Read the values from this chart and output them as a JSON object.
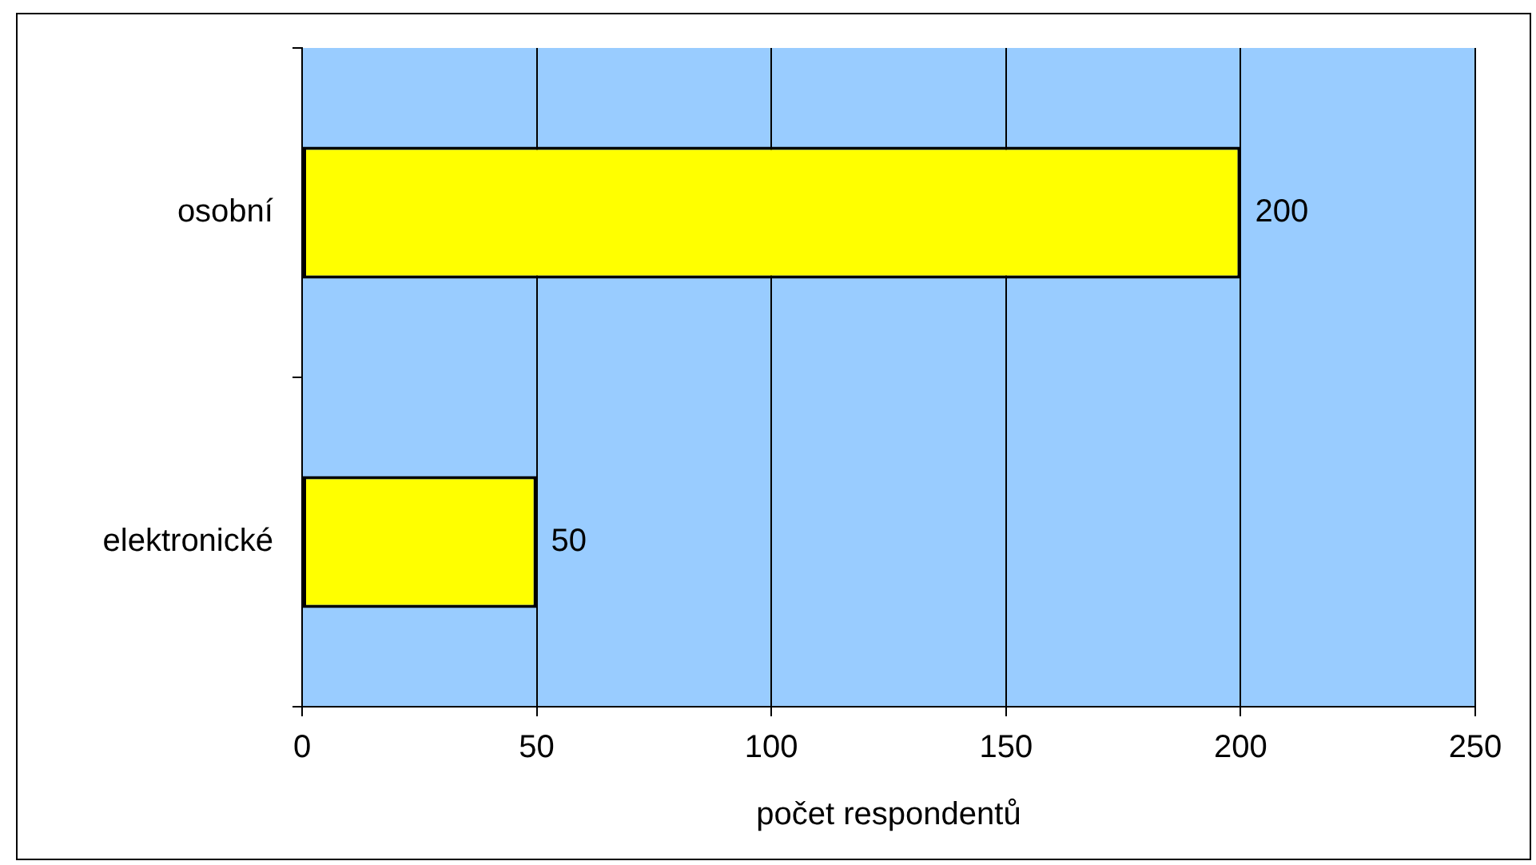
{
  "chart_data": {
    "type": "bar",
    "orientation": "horizontal",
    "xlabel": "počet respondentů",
    "categories": [
      "osobní",
      "elektronické"
    ],
    "values": [
      200,
      50
    ],
    "color": "#ffff00",
    "xlim": [
      0,
      250
    ],
    "xticks": [
      0,
      50,
      100,
      150,
      200,
      250
    ],
    "grid": "x",
    "data_labels": true
  }
}
